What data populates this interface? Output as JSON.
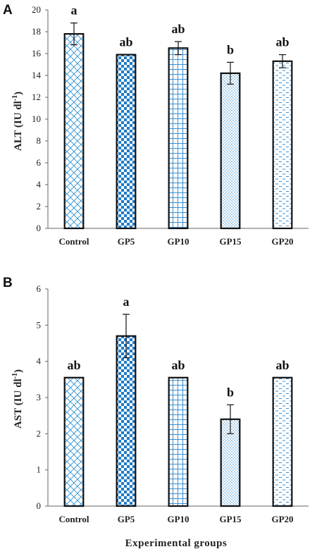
{
  "colors": {
    "bar_stroke": "#111111",
    "pattern_blue": "#1f7ac6",
    "axis": "#666666"
  },
  "chart_data": [
    {
      "type": "bar",
      "panel": "A",
      "categories": [
        "Control",
        "GP5",
        "GP10",
        "GP15",
        "GP20"
      ],
      "values": [
        17.8,
        15.9,
        16.5,
        14.2,
        15.3
      ],
      "errors": [
        1.0,
        0.0,
        0.6,
        1.0,
        0.6
      ],
      "labels": [
        "a",
        "ab",
        "ab",
        "b",
        "ab"
      ],
      "patterns": [
        "crosshatch-diagonal",
        "checker",
        "grid",
        "dots",
        "dashes"
      ],
      "ylabel": "ALT (IU dl",
      "ylabel_sup": "-1",
      "ylabel_close": ")",
      "xlabel": "",
      "ylim": [
        0,
        20
      ],
      "yticks": [
        "0",
        "2",
        "4",
        "6",
        "8",
        "10",
        "12",
        "14",
        "16",
        "18",
        "20"
      ],
      "ytick_values": [
        0,
        2,
        4,
        6,
        8,
        10,
        12,
        14,
        16,
        18,
        20
      ],
      "grid": false
    },
    {
      "type": "bar",
      "panel": "B",
      "categories": [
        "Control",
        "GP5",
        "GP10",
        "GP15",
        "GP20"
      ],
      "values": [
        3.55,
        4.7,
        3.55,
        2.4,
        3.55
      ],
      "errors": [
        0.0,
        0.6,
        0.0,
        0.4,
        0.0
      ],
      "labels": [
        "ab",
        "a",
        "ab",
        "b",
        "ab"
      ],
      "patterns": [
        "crosshatch-diagonal",
        "checker",
        "grid",
        "dots",
        "dashes"
      ],
      "ylabel": "AST (IU dl",
      "ylabel_sup": "-1",
      "ylabel_close": ")",
      "xlabel": "Experimental groups",
      "ylim": [
        0,
        6
      ],
      "yticks": [
        "0",
        "1",
        "2",
        "3",
        "4",
        "5",
        "6"
      ],
      "ytick_values": [
        0,
        1,
        2,
        3,
        4,
        5,
        6
      ],
      "grid": false
    }
  ]
}
